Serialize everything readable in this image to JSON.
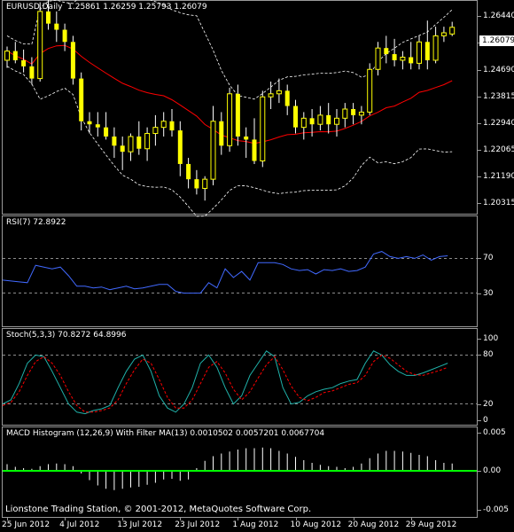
{
  "main_chart": {
    "title": "EURUSD,Daily",
    "ohlc_text": "1.25861 1.26259 1.25793 1.26079",
    "current_price": "1.26079",
    "price_labels": [
      "1.26440",
      "1.25565",
      "1.24690",
      "1.23815",
      "1.22940",
      "1.22065",
      "1.21190",
      "1.20315"
    ]
  },
  "rsi": {
    "title": "RSI(7) 72.8922",
    "labels": [
      "70",
      "30"
    ]
  },
  "stoch": {
    "title": "Stoch(5,3,3) 70.8272 64.8996",
    "labels": [
      "100",
      "80",
      "20",
      "0"
    ]
  },
  "macd": {
    "title": "MACD Histogram (12,26,9) With Filter MA(13) 0.0010502 0.0057201 0.0067704",
    "labels": [
      "0.005",
      "0.00",
      "-0.005"
    ]
  },
  "footer": {
    "copyright": "Lionstone Trading Station, © 2001-2012, MetaQuotes Software Corp.",
    "dates": [
      "25 Jun 2012",
      "4 Jul 2012",
      "13 Jul 2012",
      "23 Jul 2012",
      "1 Aug 2012",
      "10 Aug 2012",
      "20 Aug 2012",
      "29 Aug 2012"
    ]
  },
  "colors": {
    "up": "#ffff00",
    "down": "#ffff00",
    "wick": "#ffffff",
    "ma": "#ff0000",
    "bands": "#ffffff",
    "rsi": "#4169ff",
    "stoch_main": "#20b2aa",
    "stoch_signal": "#ff0000",
    "macd_bar": "#ffffff",
    "macd_zero": "#00ff00"
  },
  "chart_data": [
    {
      "type": "candlestick",
      "title": "EURUSD,Daily",
      "series": [
        {
          "name": "EURUSD",
          "ohlc": [
            [
              1.25,
              1.2545,
              1.2475,
              1.253
            ],
            [
              1.253,
              1.256,
              1.249,
              1.25
            ],
            [
              1.25,
              1.2535,
              1.246,
              1.248
            ],
            [
              1.248,
              1.251,
              1.242,
              1.244
            ],
            [
              1.244,
              1.269,
              1.243,
              1.266
            ],
            [
              1.266,
              1.27,
              1.26,
              1.262
            ],
            [
              1.262,
              1.266,
              1.256,
              1.26
            ],
            [
              1.26,
              1.262,
              1.253,
              1.256
            ],
            [
              1.256,
              1.258,
              1.242,
              1.244
            ],
            [
              1.244,
              1.246,
              1.227,
              1.23
            ],
            [
              1.23,
              1.233,
              1.226,
              1.229
            ],
            [
              1.229,
              1.233,
              1.225,
              1.228
            ],
            [
              1.228,
              1.233,
              1.224,
              1.225
            ],
            [
              1.225,
              1.228,
              1.218,
              1.222
            ],
            [
              1.222,
              1.225,
              1.214,
              1.22
            ],
            [
              1.22,
              1.226,
              1.217,
              1.225
            ],
            [
              1.225,
              1.23,
              1.219,
              1.221
            ],
            [
              1.221,
              1.228,
              1.217,
              1.226
            ],
            [
              1.226,
              1.232,
              1.222,
              1.228
            ],
            [
              1.228,
              1.233,
              1.225,
              1.23
            ],
            [
              1.23,
              1.234,
              1.225,
              1.227
            ],
            [
              1.227,
              1.23,
              1.212,
              1.216
            ],
            [
              1.216,
              1.218,
              1.208,
              1.211
            ],
            [
              1.211,
              1.214,
              1.206,
              1.208
            ],
            [
              1.208,
              1.212,
              1.204,
              1.211
            ],
            [
              1.211,
              1.235,
              1.209,
              1.23
            ],
            [
              1.23,
              1.233,
              1.219,
              1.222
            ],
            [
              1.222,
              1.241,
              1.22,
              1.239
            ],
            [
              1.239,
              1.242,
              1.222,
              1.225
            ],
            [
              1.225,
              1.228,
              1.218,
              1.224
            ],
            [
              1.224,
              1.231,
              1.216,
              1.217
            ],
            [
              1.217,
              1.24,
              1.215,
              1.238
            ],
            [
              1.238,
              1.243,
              1.234,
              1.239
            ],
            [
              1.239,
              1.244,
              1.236,
              1.24
            ],
            [
              1.24,
              1.242,
              1.232,
              1.235
            ],
            [
              1.235,
              1.237,
              1.226,
              1.228
            ],
            [
              1.228,
              1.233,
              1.224,
              1.231
            ],
            [
              1.231,
              1.234,
              1.225,
              1.229
            ],
            [
              1.229,
              1.235,
              1.227,
              1.232
            ],
            [
              1.232,
              1.236,
              1.226,
              1.229
            ],
            [
              1.229,
              1.234,
              1.225,
              1.231
            ],
            [
              1.231,
              1.236,
              1.228,
              1.234
            ],
            [
              1.234,
              1.236,
              1.229,
              1.232
            ],
            [
              1.232,
              1.235,
              1.229,
              1.233
            ],
            [
              1.233,
              1.249,
              1.232,
              1.247
            ],
            [
              1.247,
              1.256,
              1.245,
              1.254
            ],
            [
              1.254,
              1.258,
              1.249,
              1.252
            ],
            [
              1.252,
              1.257,
              1.248,
              1.25
            ],
            [
              1.25,
              1.253,
              1.247,
              1.251
            ],
            [
              1.251,
              1.256,
              1.247,
              1.249
            ],
            [
              1.249,
              1.258,
              1.247,
              1.256
            ],
            [
              1.256,
              1.263,
              1.247,
              1.25
            ],
            [
              1.25,
              1.261,
              1.249,
              1.258
            ],
            [
              1.258,
              1.261,
              1.256,
              1.259
            ],
            [
              1.2586,
              1.2626,
              1.2579,
              1.2608
            ]
          ]
        }
      ],
      "ylim": [
        1.2,
        1.268
      ]
    },
    {
      "type": "line",
      "title": "RSI(7) 72.8922",
      "series": [
        {
          "values": [
            45,
            44,
            43,
            42,
            62,
            60,
            58,
            60,
            50,
            38,
            38,
            36,
            37,
            34,
            36,
            38,
            35,
            36,
            38,
            40,
            40,
            32,
            30,
            30,
            30,
            42,
            36,
            58,
            48,
            55,
            45,
            65,
            65,
            65,
            63,
            58,
            56,
            57,
            52,
            57,
            56,
            58,
            55,
            56,
            60,
            75,
            78,
            72,
            70,
            72,
            70,
            74,
            68,
            72,
            73
          ]
        }
      ],
      "ylim": [
        0,
        100
      ]
    },
    {
      "type": "line",
      "title": "Stoch(5,3,3) 70.8272 64.8996",
      "series": [
        {
          "values": [
            20,
            25,
            45,
            70,
            80,
            78,
            60,
            40,
            20,
            10,
            8,
            12,
            14,
            18,
            40,
            60,
            75,
            80,
            60,
            30,
            15,
            10,
            20,
            40,
            70,
            80,
            65,
            40,
            20,
            30,
            55,
            70,
            85,
            78,
            40,
            20,
            22,
            30,
            35,
            38,
            40,
            45,
            48,
            50,
            70,
            85,
            80,
            68,
            60,
            55,
            55,
            58,
            62,
            66,
            70
          ]
        },
        {
          "values": [
            18,
            22,
            35,
            55,
            72,
            78,
            70,
            55,
            35,
            18,
            10,
            10,
            12,
            15,
            25,
            45,
            62,
            75,
            70,
            50,
            28,
            15,
            15,
            25,
            45,
            65,
            72,
            58,
            38,
            25,
            35,
            52,
            68,
            78,
            62,
            42,
            28,
            24,
            28,
            34,
            36,
            40,
            44,
            46,
            55,
            72,
            80,
            76,
            68,
            60,
            56,
            55,
            58,
            61,
            65
          ]
        }
      ],
      "ylim": [
        0,
        100
      ]
    },
    {
      "type": "bar",
      "title": "MACD Histogram (12,26,9) With Filter MA(13) 0.0010502 0.0057201 0.0067704",
      "values": [
        0.001,
        0.0006,
        0.0004,
        0.0003,
        0.0007,
        0.001,
        0.0011,
        0.001,
        0.0007,
        -0.0004,
        -0.0014,
        -0.0022,
        -0.0027,
        -0.0029,
        -0.0027,
        -0.0025,
        -0.0024,
        -0.0021,
        -0.0018,
        -0.0013,
        -0.0012,
        -0.0015,
        -0.0013,
        0.0004,
        0.0015,
        0.0022,
        0.0026,
        0.0029,
        0.0032,
        0.0034,
        0.0034,
        0.0035,
        0.0034,
        0.003,
        0.0026,
        0.0021,
        0.0016,
        0.0012,
        0.0009,
        0.0007,
        0.0006,
        0.0004,
        0.0006,
        0.0011,
        0.0019,
        0.0026,
        0.003,
        0.003,
        0.0029,
        0.0027,
        0.0024,
        0.0022,
        0.0016,
        0.0012,
        0.0011
      ],
      "ylim": [
        -0.006,
        0.006
      ]
    }
  ]
}
